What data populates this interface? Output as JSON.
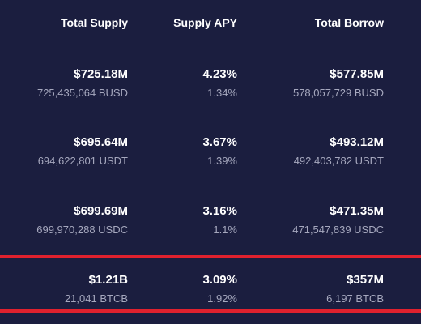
{
  "headers": {
    "total_supply": "Total Supply",
    "supply_apy": "Supply APY",
    "total_borrow": "Total Borrow"
  },
  "rows": [
    {
      "total_supply": "$725.18M",
      "total_supply_sub": "725,435,064 BUSD",
      "supply_apy": "4.23%",
      "supply_apy_sub": "1.34%",
      "total_borrow": "$577.85M",
      "total_borrow_sub": "578,057,729 BUSD"
    },
    {
      "total_supply": "$695.64M",
      "total_supply_sub": "694,622,801 USDT",
      "supply_apy": "3.67%",
      "supply_apy_sub": "1.39%",
      "total_borrow": "$493.12M",
      "total_borrow_sub": "492,403,782 USDT"
    },
    {
      "total_supply": "$699.69M",
      "total_supply_sub": "699,970,288 USDC",
      "supply_apy": "3.16%",
      "supply_apy_sub": "1.1%",
      "total_borrow": "$471.35M",
      "total_borrow_sub": "471,547,839 USDC"
    },
    {
      "total_supply": "$1.21B",
      "total_supply_sub": "21,041 BTCB",
      "supply_apy": "3.09%",
      "supply_apy_sub": "1.92%",
      "total_borrow": "$357M",
      "total_borrow_sub": "6,197 BTCB"
    }
  ],
  "colors": {
    "background": "#1b1e3f",
    "highlight": "#e0212e",
    "secondary_text": "#a6a8be"
  }
}
